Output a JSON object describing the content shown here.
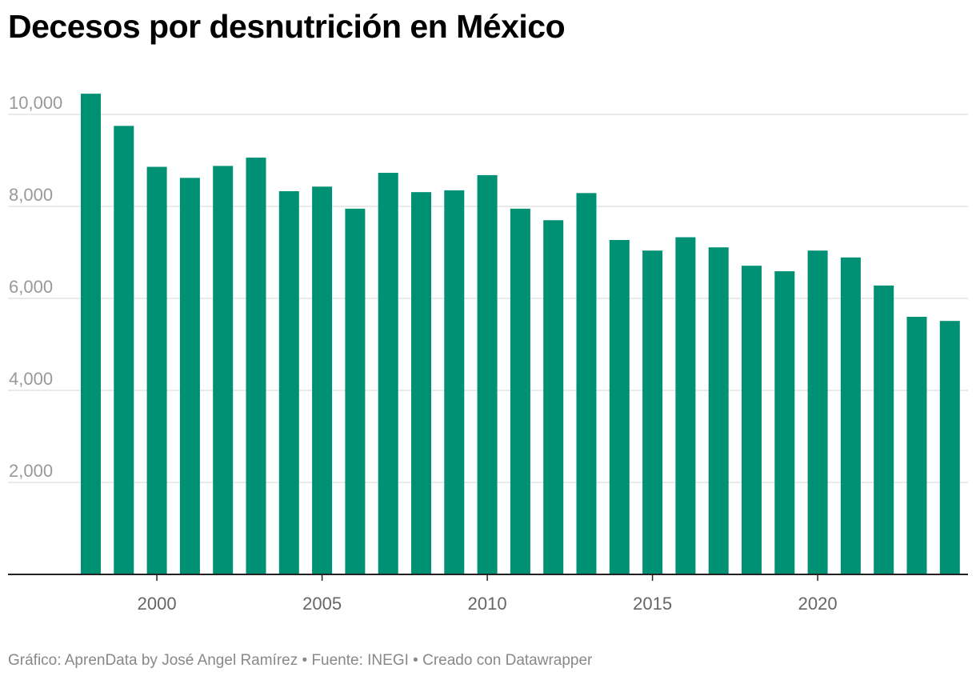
{
  "chart_data": {
    "type": "bar",
    "title": "Decesos por desnutrición en México",
    "xlabel": "",
    "ylabel": "",
    "ylim": [
      0,
      10500
    ],
    "yticks": [
      2000,
      4000,
      6000,
      8000,
      10000
    ],
    "ytick_labels": [
      "2,000",
      "4,000",
      "6,000",
      "8,000",
      "10,000"
    ],
    "xticks": [
      2000,
      2005,
      2010,
      2015,
      2020
    ],
    "xtick_labels": [
      "2000",
      "2005",
      "2010",
      "2015",
      "2020"
    ],
    "grid": true,
    "color": "#009175",
    "categories": [
      1998,
      1999,
      2000,
      2001,
      2002,
      2003,
      2004,
      2005,
      2006,
      2007,
      2008,
      2009,
      2010,
      2011,
      2012,
      2013,
      2014,
      2015,
      2016,
      2017,
      2018,
      2019,
      2020,
      2021,
      2022,
      2023,
      2024
    ],
    "values": [
      10450,
      9750,
      8860,
      8620,
      8880,
      9060,
      8330,
      8430,
      7950,
      8730,
      8310,
      8350,
      8680,
      7950,
      7700,
      8290,
      7270,
      7040,
      7330,
      7110,
      6710,
      6590,
      7040,
      6890,
      6280,
      5600,
      5510
    ]
  },
  "footer": "Gráfico: AprenData by José Angel Ramírez • Fuente: INEGI • Creado con Datawrapper"
}
